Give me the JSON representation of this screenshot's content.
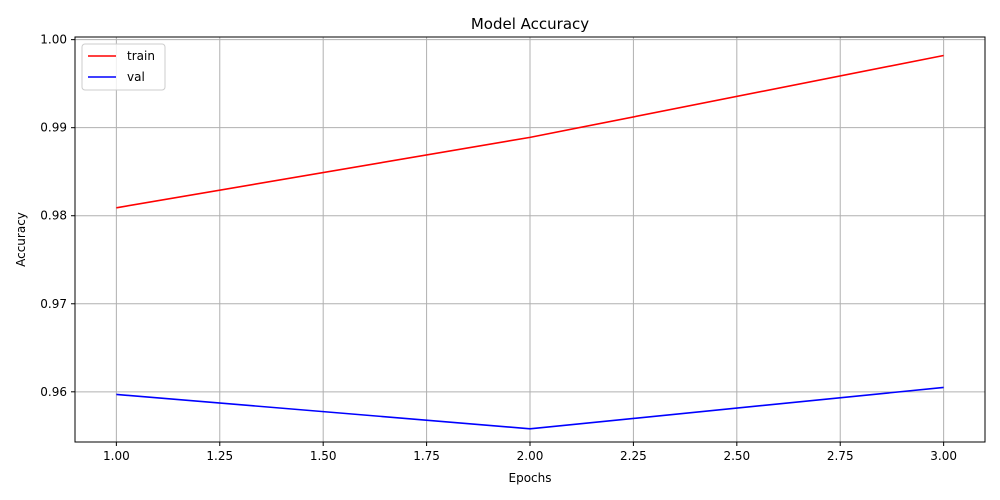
{
  "chart_data": {
    "type": "line",
    "title": "Model Accuracy",
    "xlabel": "Epochs",
    "ylabel": "Accuracy",
    "x": [
      1,
      2,
      3
    ],
    "xlim": [
      0.9,
      3.1
    ],
    "ylim": [
      0.9543,
      1.0003
    ],
    "xticks": [
      1.0,
      1.25,
      1.5,
      1.75,
      2.0,
      2.25,
      2.5,
      2.75,
      3.0
    ],
    "xtick_labels": [
      "1.00",
      "1.25",
      "1.50",
      "1.75",
      "2.00",
      "2.25",
      "2.50",
      "2.75",
      "3.00"
    ],
    "yticks": [
      0.96,
      0.97,
      0.98,
      0.99,
      1.0
    ],
    "ytick_labels": [
      "0.96",
      "0.97",
      "0.98",
      "0.99",
      "1.00"
    ],
    "grid": true,
    "legend_position": "top-left",
    "series": [
      {
        "name": "train",
        "color": "#ff0000",
        "values": [
          0.9809,
          0.9889,
          0.9982
        ]
      },
      {
        "name": "val",
        "color": "#0000ff",
        "values": [
          0.9597,
          0.9558,
          0.9605
        ]
      }
    ]
  }
}
